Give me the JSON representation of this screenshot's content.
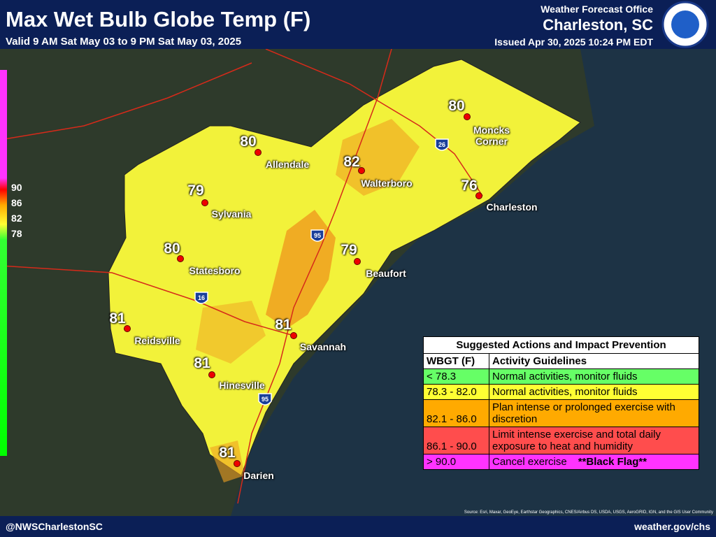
{
  "header": {
    "title": "Max Wet Bulb Globe Temp (F)",
    "valid": "Valid 9 AM Sat May 03 to 9 PM Sat May 03, 2025",
    "office": "Weather Forecast Office",
    "location": "Charleston, SC",
    "issued": "Issued Apr 30, 2025 10:24 PM EDT"
  },
  "color_scale": {
    "ticks": [
      "90",
      "86",
      "82",
      "78"
    ]
  },
  "cities": [
    {
      "name": "Moncks Corner",
      "value": 80
    },
    {
      "name": "Allendale",
      "value": 80
    },
    {
      "name": "Walterboro",
      "value": 82
    },
    {
      "name": "Charleston",
      "value": 76
    },
    {
      "name": "Sylvania",
      "value": 79
    },
    {
      "name": "Statesboro",
      "value": 80
    },
    {
      "name": "Beaufort",
      "value": 79
    },
    {
      "name": "Reidsville",
      "value": 81
    },
    {
      "name": "Savannah",
      "value": 81
    },
    {
      "name": "Hinesville",
      "value": 81
    },
    {
      "name": "Darien",
      "value": 81
    }
  ],
  "highways": [
    "26",
    "95",
    "16",
    "95"
  ],
  "table": {
    "title": "Suggested Actions and Impact Prevention",
    "headers": [
      "WBGT (F)",
      "Activity Guidelines"
    ],
    "rows": [
      {
        "range": "< 78.3",
        "guideline": "Normal activities, monitor fluids",
        "color": "#66ff66"
      },
      {
        "range": "78.3 - 82.0",
        "guideline": "Normal activities, monitor fluids",
        "color": "#ffff33"
      },
      {
        "range": "82.1 - 86.0",
        "guideline": "Plan intense or prolonged exercise with discretion",
        "color": "#ffaa00"
      },
      {
        "range": "86.1 - 90.0",
        "guideline": "Limit intense exercise and total daily exposure to heat and humidity",
        "color": "#ff4d4d"
      },
      {
        "range": "> 90.0",
        "guideline": "Cancel exercise",
        "note": "**Black Flag**",
        "color": "#ff33ff"
      }
    ]
  },
  "footer": {
    "handle": "@NWSCharlestonSC",
    "website": "weather.gov/chs",
    "source": "Source: Esri, Maxar, GeoEye, Earthstar Geographics, CNES/Airbus DS, USDA, USGS, AeroGRID, IGN, and the GIS User Community"
  }
}
